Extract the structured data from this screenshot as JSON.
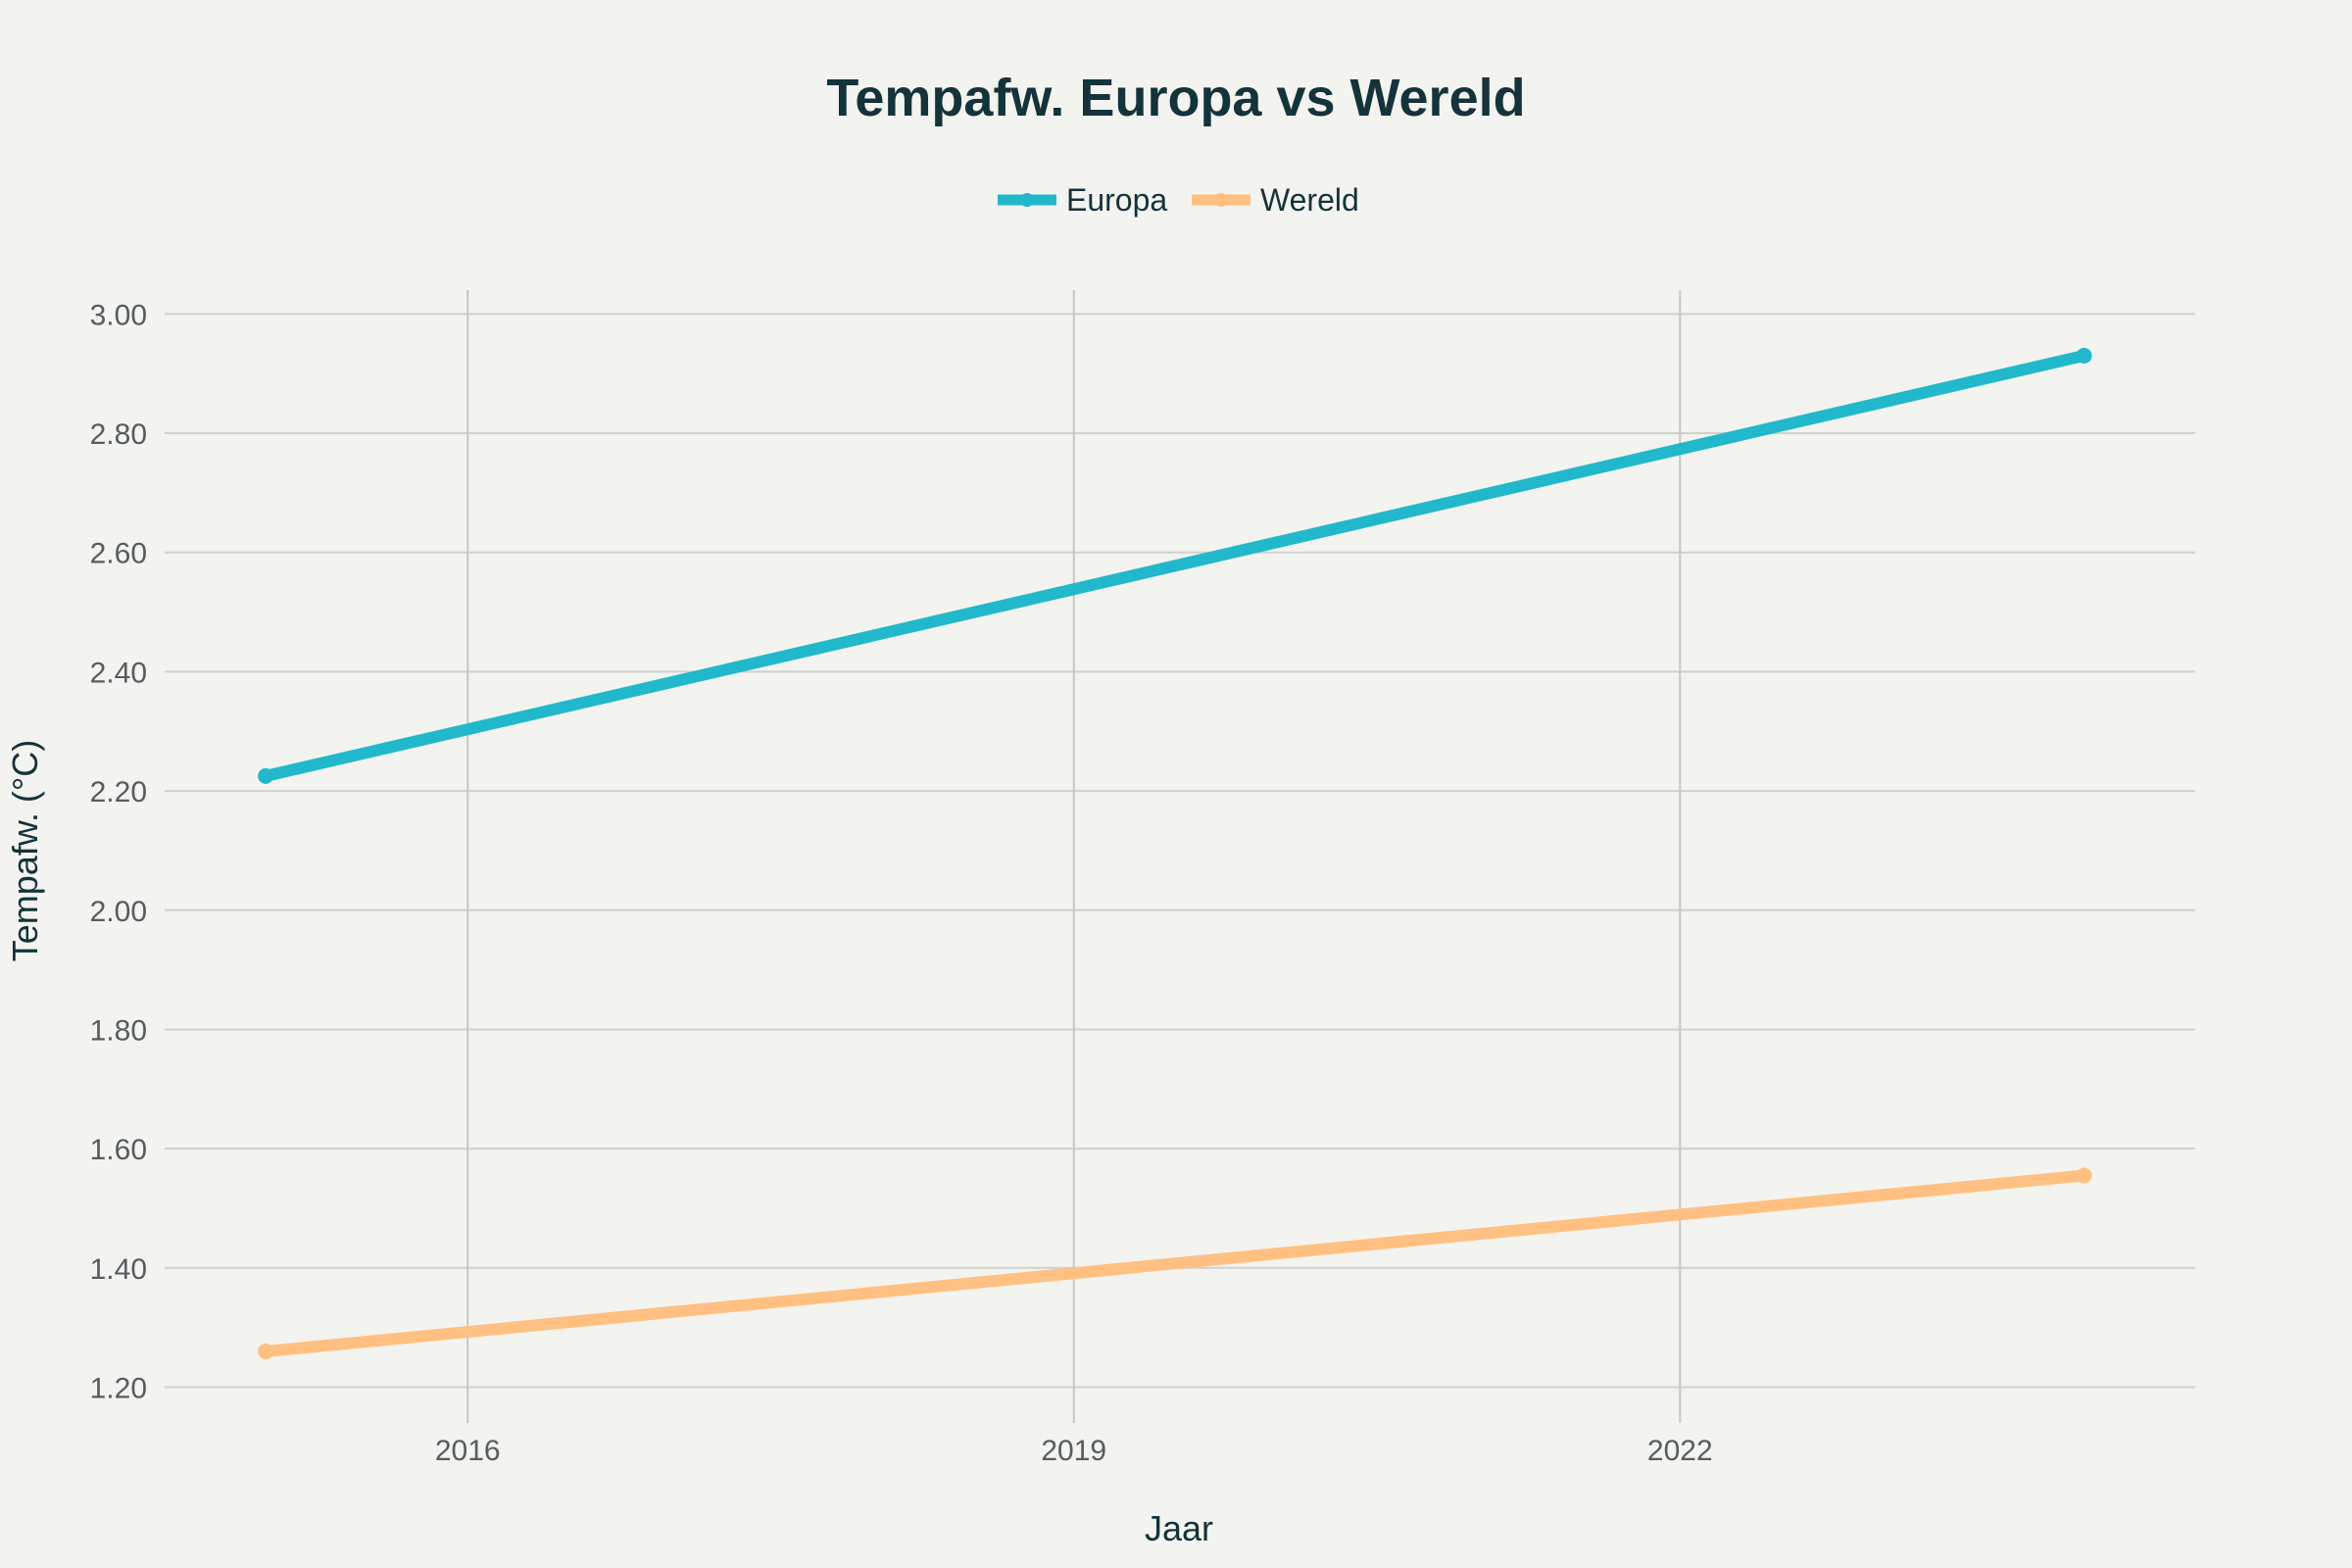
{
  "chart_data": {
    "type": "line",
    "title": "Tempafw. Europa vs Wereld",
    "xlabel": "Jaar",
    "ylabel": "Tempafw. (°C)",
    "x": [
      2015,
      2024
    ],
    "xlim": [
      2014.5,
      2024.55
    ],
    "ylim": [
      1.14,
      3.04
    ],
    "xticks": [
      2016,
      2019,
      2022
    ],
    "yticks": [
      1.2,
      1.4,
      1.6,
      1.8,
      2.0,
      2.2,
      2.4,
      2.6,
      2.8,
      3.0
    ],
    "ytick_labels": [
      "1.20",
      "1.40",
      "1.60",
      "1.80",
      "2.00",
      "2.20",
      "2.40",
      "2.60",
      "2.80",
      "3.00"
    ],
    "grid": true,
    "legend_position": "top-center",
    "series": [
      {
        "name": "Europa",
        "color": "#22b8cb",
        "values": [
          2.225,
          2.93
        ]
      },
      {
        "name": "Wereld",
        "color": "#ffc081",
        "values": [
          1.26,
          1.555
        ]
      }
    ]
  }
}
